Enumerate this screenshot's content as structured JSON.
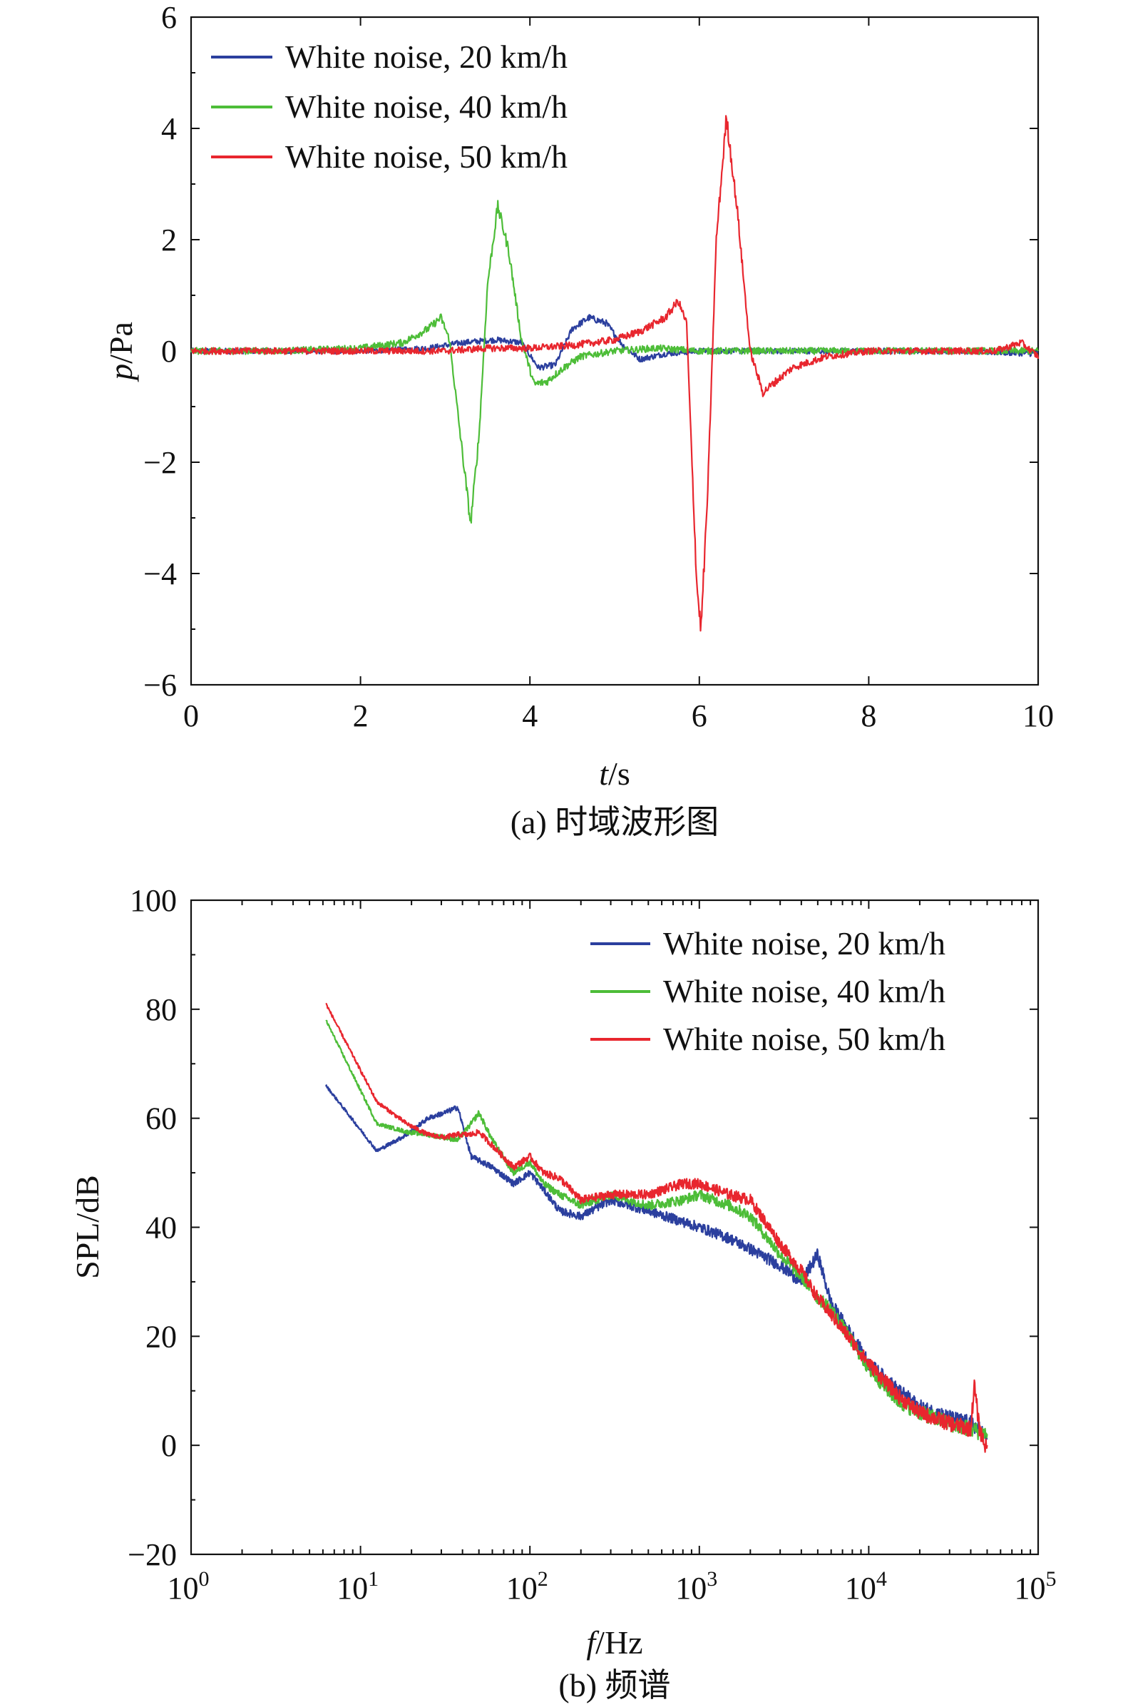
{
  "figure_captions": [
    "(a) 时域波形图",
    "(b) 频谱"
  ],
  "chart_data": [
    {
      "type": "line",
      "panel": "a",
      "caption": "(a) 时域波形图",
      "xlabel_var": "t",
      "xlabel_unit": "/s",
      "ylabel_var": "p",
      "ylabel_unit": "/Pa",
      "xlim": [
        0,
        10
      ],
      "ylim": [
        -6,
        6
      ],
      "xticks": [
        0,
        2,
        4,
        6,
        8,
        10
      ],
      "yticks": [
        -6,
        -4,
        -2,
        0,
        2,
        4,
        6
      ],
      "xtick_labels": [
        "0",
        "2",
        "4",
        "6",
        "8",
        "10"
      ],
      "ytick_labels": [
        "−6",
        "−4",
        "−2",
        "0",
        "2",
        "4",
        "6"
      ],
      "grid": false,
      "legend_position": "top-left",
      "series": [
        {
          "name": "White noise, 20 km/h",
          "color": "#2b3f9e",
          "noise": 0.05,
          "x": [
            0,
            1,
            2,
            2.8,
            3.2,
            3.6,
            3.9,
            4.1,
            4.3,
            4.5,
            4.7,
            4.9,
            5.1,
            5.3,
            5.6,
            6.0,
            6.5,
            7,
            8,
            9,
            10
          ],
          "y": [
            0,
            0,
            0,
            0.05,
            0.15,
            0.2,
            0.15,
            -0.3,
            -0.25,
            0.4,
            0.6,
            0.5,
            0.1,
            -0.15,
            -0.05,
            0,
            0,
            0,
            0,
            0,
            -0.05
          ]
        },
        {
          "name": "White noise, 40 km/h",
          "color": "#4dbd38",
          "noise": 0.06,
          "x": [
            0,
            1,
            2,
            2.5,
            2.8,
            2.95,
            3.05,
            3.2,
            3.3,
            3.4,
            3.5,
            3.62,
            3.75,
            3.9,
            4.05,
            4.2,
            4.4,
            4.6,
            5.0,
            5.5,
            6,
            7,
            8,
            9,
            10
          ],
          "y": [
            0,
            0,
            0.05,
            0.15,
            0.4,
            0.6,
            0.2,
            -1.8,
            -3.1,
            -1.5,
            1.2,
            2.6,
            1.8,
            0.2,
            -0.6,
            -0.55,
            -0.3,
            -0.1,
            0,
            0.05,
            0,
            0,
            0,
            0,
            0
          ]
        },
        {
          "name": "White noise, 50 km/h",
          "color": "#e8262e",
          "noise": 0.06,
          "x": [
            0,
            1,
            2,
            3,
            3.5,
            4,
            4.5,
            5.0,
            5.3,
            5.6,
            5.75,
            5.85,
            5.9,
            5.97,
            6.02,
            6.1,
            6.2,
            6.32,
            6.45,
            6.6,
            6.75,
            6.9,
            7.1,
            7.5,
            8,
            8.5,
            9,
            9.5,
            9.8,
            10
          ],
          "y": [
            0,
            0,
            0,
            0,
            0.05,
            0.05,
            0.1,
            0.2,
            0.35,
            0.6,
            0.9,
            0.5,
            -1.5,
            -4.2,
            -5.0,
            -2.5,
            2.0,
            4.2,
            2.5,
            0.0,
            -0.75,
            -0.55,
            -0.3,
            -0.1,
            0,
            0,
            0,
            0,
            0.15,
            -0.1
          ]
        }
      ]
    },
    {
      "type": "line",
      "panel": "b",
      "caption": "(b) 频谱",
      "xlabel_var": "f",
      "xlabel_unit": "/Hz",
      "ylabel": "SPL/dB",
      "xscale": "log",
      "xlim": [
        1,
        100000
      ],
      "ylim": [
        -20,
        100
      ],
      "xtick_exponents": [
        "0",
        "1",
        "2",
        "3",
        "4",
        "5"
      ],
      "yticks": [
        -20,
        0,
        20,
        40,
        60,
        80,
        100
      ],
      "ytick_labels": [
        "−20",
        "0",
        "20",
        "40",
        "60",
        "80",
        "100"
      ],
      "grid": false,
      "legend_position": "top-right",
      "series": [
        {
          "name": "White noise, 20 km/h",
          "color": "#2b3f9e",
          "noise": 0.8,
          "x": [
            6.25,
            12.5,
            18.75,
            25,
            31.25,
            37.5,
            45,
            60,
            80,
            100,
            120,
            150,
            200,
            300,
            500,
            800,
            1000,
            1500,
            2000,
            3000,
            4000,
            5000,
            6000,
            8000,
            10000,
            15000,
            20000,
            30000,
            40000,
            45000,
            50000
          ],
          "y": [
            66,
            54,
            57,
            60,
            61,
            62,
            53,
            51,
            48,
            50,
            47,
            43,
            42,
            45,
            43,
            41,
            40,
            38,
            36,
            33,
            30,
            35,
            26,
            20,
            15,
            10,
            7,
            5,
            4,
            3,
            1
          ]
        },
        {
          "name": "White noise, 40 km/h",
          "color": "#4dbd38",
          "noise": 0.8,
          "x": [
            6.25,
            12.5,
            18.75,
            25,
            31.25,
            37.5,
            45,
            50,
            60,
            80,
            100,
            120,
            150,
            200,
            300,
            500,
            800,
            1000,
            1500,
            2000,
            3000,
            4000,
            5000,
            6000,
            8000,
            10000,
            15000,
            20000,
            30000,
            40000,
            50000
          ],
          "y": [
            78,
            59,
            57.5,
            57,
            56.5,
            56,
            59,
            61,
            56,
            50,
            52,
            48,
            46,
            44,
            46,
            44,
            45,
            46,
            44,
            42,
            35,
            31,
            27,
            25,
            19,
            14,
            8,
            6,
            4,
            3,
            2
          ]
        },
        {
          "name": "White noise, 50 km/h",
          "color": "#e8262e",
          "noise": 0.8,
          "x": [
            6.25,
            12.5,
            18.75,
            25,
            31.25,
            37.5,
            45,
            50,
            60,
            80,
            100,
            120,
            150,
            200,
            300,
            500,
            800,
            1000,
            1500,
            2000,
            3000,
            4000,
            5000,
            6000,
            8000,
            10000,
            15000,
            20000,
            30000,
            40000,
            42000,
            45000,
            50000
          ],
          "y": [
            81,
            63,
            59,
            57,
            56.5,
            57,
            57,
            57.5,
            55,
            51,
            53,
            50,
            49,
            45,
            46,
            46,
            48,
            48,
            46,
            45,
            37,
            32,
            27,
            24,
            19,
            15,
            9,
            6,
            4,
            3,
            11,
            3,
            -1
          ]
        }
      ]
    }
  ]
}
